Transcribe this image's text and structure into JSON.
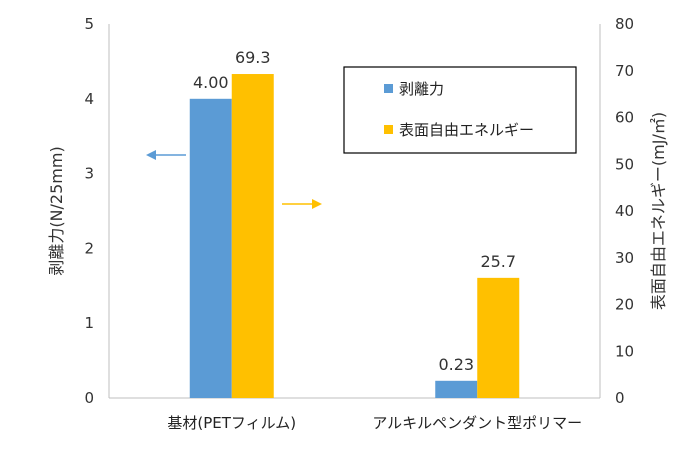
{
  "chart_data": {
    "type": "bar",
    "categories": [
      "基材(PETフィルム)",
      "アルキルペンダント型ポリマー"
    ],
    "series": [
      {
        "name": "剥離力",
        "values": [
          4.0,
          0.23
        ],
        "labels": [
          "4.00",
          "0.23"
        ],
        "axis": "left",
        "color": "#5B9BD5"
      },
      {
        "name": "表面自由エネルギー",
        "values": [
          69.3,
          25.7
        ],
        "labels": [
          "69.3",
          "25.7"
        ],
        "axis": "right",
        "color": "#FFC000"
      }
    ],
    "ylabel_left": "剥離力(N/25mm)",
    "ylabel_right": "表面自由エネルギー(mJ/㎡)",
    "ylim_left": [
      0,
      5
    ],
    "ylim_right": [
      0,
      80
    ],
    "yticks_left": [
      "0",
      "1",
      "2",
      "3",
      "4",
      "5"
    ],
    "yticks_right": [
      "0",
      "10",
      "20",
      "30",
      "40",
      "50",
      "60",
      "70",
      "80"
    ],
    "grid": false,
    "legend_position": "top-right"
  }
}
